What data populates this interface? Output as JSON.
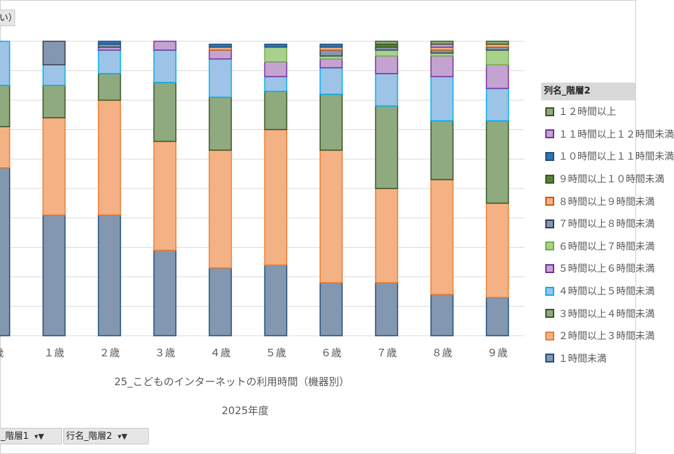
{
  "top_field_label": "い）",
  "bottom_fields": [
    {
      "label": "_階層1"
    },
    {
      "label": "行名_階層2"
    }
  ],
  "legend_title": "列名_階層2",
  "chart_data": {
    "type": "bar",
    "stacked": true,
    "x_title": "25_こどものインターネットの利用時間（機器別）",
    "x_subtitle": "2025年度",
    "categories": [
      "歳",
      "１歳",
      "２歳",
      "３歳",
      "４歳",
      "５歳",
      "６歳",
      "７歳",
      "８歳",
      "９歳"
    ],
    "ylim": [
      0,
      100
    ],
    "gridlines": true,
    "legend_position": "right",
    "series": [
      {
        "name": "１時間未満",
        "fill": "#8497b0",
        "stroke": "#1f4e79",
        "values": [
          57,
          41,
          41,
          29,
          23,
          24,
          18,
          18,
          14,
          13
        ]
      },
      {
        "name": "２時間以上３時間未満",
        "fill": "#f4b183",
        "stroke": "#ed7d31",
        "values": [
          14,
          33,
          39,
          37,
          40,
          46,
          45,
          32,
          39,
          32
        ]
      },
      {
        "name": "３時間以上４時間未満",
        "fill": "#8faa7f",
        "stroke": "#375623",
        "values": [
          14,
          11,
          9,
          20,
          18,
          13,
          19,
          28,
          20,
          28
        ]
      },
      {
        "name": "４時間以上５時間未満",
        "fill": "#9dc3e6",
        "stroke": "#00b0f0",
        "values": [
          15,
          7,
          8,
          11,
          13,
          5,
          9,
          11,
          15,
          11
        ]
      },
      {
        "name": "５時間以上６時間未満",
        "fill": "#c5a3d0",
        "stroke": "#7030a0",
        "values": [
          0,
          0,
          1,
          3,
          3,
          5,
          3,
          6,
          7,
          8
        ]
      },
      {
        "name": "６時間以上７時間未満",
        "fill": "#a9d18e",
        "stroke": "#70ad47",
        "values": [
          0,
          0,
          0,
          0,
          0,
          5,
          1,
          2,
          1,
          5
        ]
      },
      {
        "name": "７時間以上８時間未満",
        "fill": "#8497b0",
        "stroke": "#323f4f",
        "values": [
          0,
          8,
          1,
          0,
          0,
          0,
          2,
          1,
          1,
          1
        ]
      },
      {
        "name": "８時間以上９時間未満",
        "fill": "#f4b183",
        "stroke": "#c55a11",
        "values": [
          0,
          0,
          0,
          0,
          1,
          0,
          1,
          0,
          1,
          1
        ]
      },
      {
        "name": "９時間以上１０時間未満",
        "fill": "#548235",
        "stroke": "#375623",
        "values": [
          0,
          0,
          0,
          0,
          0,
          0,
          0,
          1,
          0,
          0
        ]
      },
      {
        "name": "１０時間以上１１時間未満",
        "fill": "#2e75b6",
        "stroke": "#1f4e79",
        "values": [
          0,
          0,
          1,
          0,
          1,
          1,
          1,
          0,
          0,
          0
        ]
      },
      {
        "name": "１１時間以上１２時間未満",
        "fill": "#c5a3d0",
        "stroke": "#7030a0",
        "values": [
          0,
          0,
          0,
          0,
          0,
          0,
          0,
          0,
          1,
          0
        ]
      },
      {
        "name": "１２時間以上",
        "fill": "#8faa7f",
        "stroke": "#375623",
        "values": [
          0,
          0,
          0,
          0,
          0,
          0,
          0,
          1,
          1,
          1
        ]
      }
    ]
  }
}
